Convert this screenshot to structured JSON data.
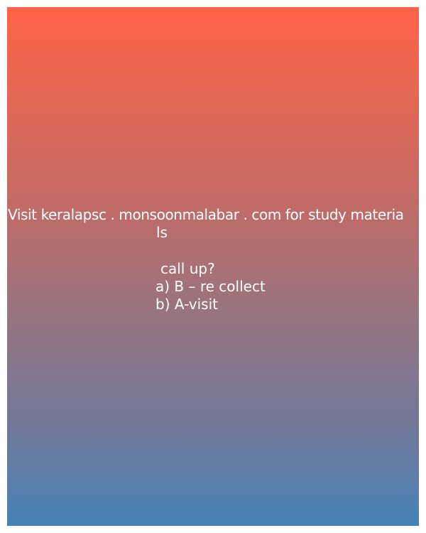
{
  "text_lines": [
    "Visit keralapsc . monsoonmalabar . com for study materia",
    "ls",
    "call up?",
    "a) B – re collect",
    "b) A-visit"
  ],
  "colors": {
    "gradient_top": "#ff6347",
    "gradient_bottom": "#4682b4",
    "text": "#ffffff"
  }
}
